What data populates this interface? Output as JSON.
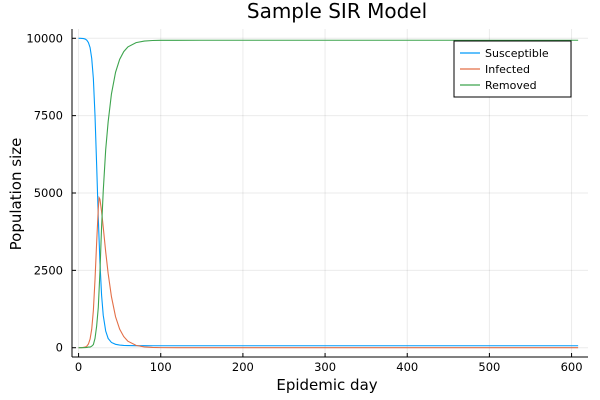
{
  "chart_data": {
    "type": "line",
    "title": "Sample SIR Model",
    "xlabel": "Epidemic day",
    "ylabel": "Population size",
    "xlim": [
      -8,
      620
    ],
    "ylim": [
      -300,
      10300
    ],
    "xticks": [
      0,
      100,
      200,
      300,
      400,
      500,
      600
    ],
    "yticks": [
      0,
      2500,
      5000,
      7500,
      10000
    ],
    "grid": true,
    "legend_position": "top-right",
    "series": [
      {
        "name": "Susceptible",
        "color": "#009AFA",
        "x": [
          0,
          2,
          4,
          6,
          8,
          10,
          12,
          14,
          16,
          18,
          20,
          22,
          24,
          26,
          28,
          30,
          33,
          36,
          40,
          45,
          50,
          55,
          60,
          70,
          80,
          90,
          100,
          150,
          200,
          300,
          400,
          500,
          608
        ],
        "y": [
          9999,
          9998,
          9996,
          9990,
          9975,
          9940,
          9860,
          9700,
          9350,
          8700,
          7500,
          5900,
          4200,
          2750,
          1700,
          1050,
          540,
          300,
          170,
          110,
          85,
          75,
          70,
          66,
          65,
          64,
          64,
          64,
          64,
          64,
          64,
          64,
          64
        ]
      },
      {
        "name": "Infected",
        "color": "#E36F47",
        "x": [
          0,
          4,
          8,
          10,
          12,
          14,
          16,
          18,
          20,
          22,
          24,
          25,
          26,
          28,
          30,
          33,
          36,
          40,
          45,
          50,
          55,
          60,
          70,
          80,
          90,
          100,
          120,
          150,
          200,
          300,
          400,
          500,
          608
        ],
        "y": [
          1,
          3,
          20,
          50,
          120,
          280,
          600,
          1200,
          2200,
          3400,
          4500,
          4850,
          4800,
          4400,
          3900,
          3100,
          2400,
          1650,
          1000,
          600,
          360,
          210,
          75,
          25,
          8,
          3,
          1,
          0,
          0,
          0,
          0,
          0,
          0
        ]
      },
      {
        "name": "Removed",
        "color": "#3DA44D",
        "x": [
          0,
          4,
          8,
          10,
          12,
          14,
          16,
          18,
          20,
          22,
          24,
          26,
          28,
          30,
          33,
          36,
          40,
          45,
          50,
          55,
          60,
          70,
          80,
          90,
          100,
          120,
          150,
          200,
          300,
          400,
          500,
          608
        ],
        "y": [
          0,
          1,
          5,
          10,
          20,
          20,
          50,
          100,
          300,
          700,
          1300,
          2450,
          3900,
          5050,
          6400,
          7300,
          8200,
          8900,
          9320,
          9570,
          9720,
          9860,
          9910,
          9928,
          9933,
          9935,
          9936,
          9936,
          9936,
          9936,
          9936,
          9936
        ]
      }
    ]
  }
}
